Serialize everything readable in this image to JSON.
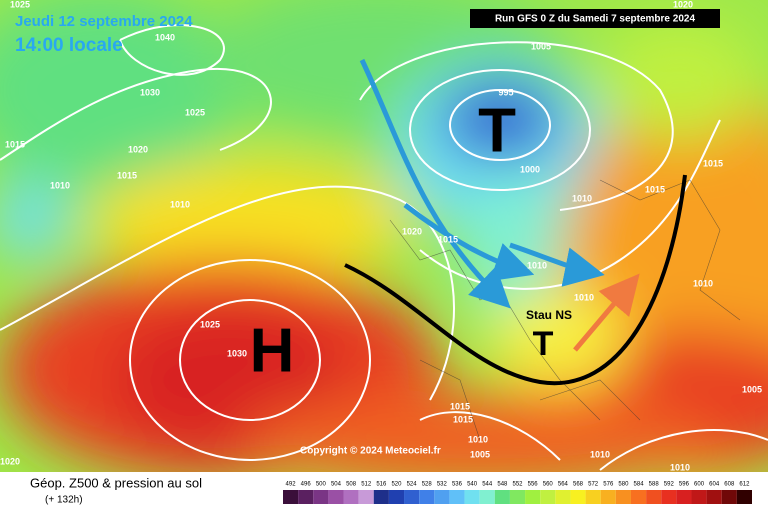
{
  "header": {
    "date": "Jeudi 12 septembre 2024",
    "time": "14:00 locale",
    "run": "Run GFS 0 Z du Samedi 7 septembre 2024"
  },
  "footer": {
    "title": "Géop. Z500 & pression au sol",
    "lead": "(+ 132h)",
    "copyright": "Copyright © 2024 Meteociel.fr"
  },
  "map": {
    "pressure_centers": [
      "T",
      "H",
      "T"
    ],
    "annotation": "Stau NS",
    "isobar_labels": [
      1025,
      1040,
      1030,
      1025,
      1015,
      1020,
      1015,
      1010,
      1010,
      1005,
      1020,
      995,
      1000,
      1010,
      1015,
      1015,
      1020,
      1015,
      1010,
      1010,
      1010,
      1025,
      1030,
      1005,
      1015,
      1015,
      1010,
      1005,
      1010,
      1020,
      1010
    ]
  },
  "legend": {
    "ticks": [
      492,
      496,
      500,
      504,
      508,
      512,
      516,
      520,
      524,
      528,
      532,
      536,
      540,
      544,
      548,
      552,
      556,
      560,
      564,
      568,
      572,
      576,
      580,
      584,
      588,
      592,
      596,
      600,
      604,
      608,
      612
    ],
    "colors": [
      "#3a0f3a",
      "#5a2060",
      "#7a3585",
      "#9a50a5",
      "#b070c0",
      "#c89ad8",
      "#1e2f8a",
      "#2040b0",
      "#3060d0",
      "#4080e8",
      "#50a0f0",
      "#60c0f8",
      "#70e0f0",
      "#80f0d0",
      "#60e080",
      "#80e860",
      "#a0f040",
      "#c0f040",
      "#e0f030",
      "#f8f020",
      "#f8d020",
      "#f8b020",
      "#f89020",
      "#f87020",
      "#f05020",
      "#e83020",
      "#d82020",
      "#c01818",
      "#a01010",
      "#700808",
      "#300000"
    ]
  }
}
